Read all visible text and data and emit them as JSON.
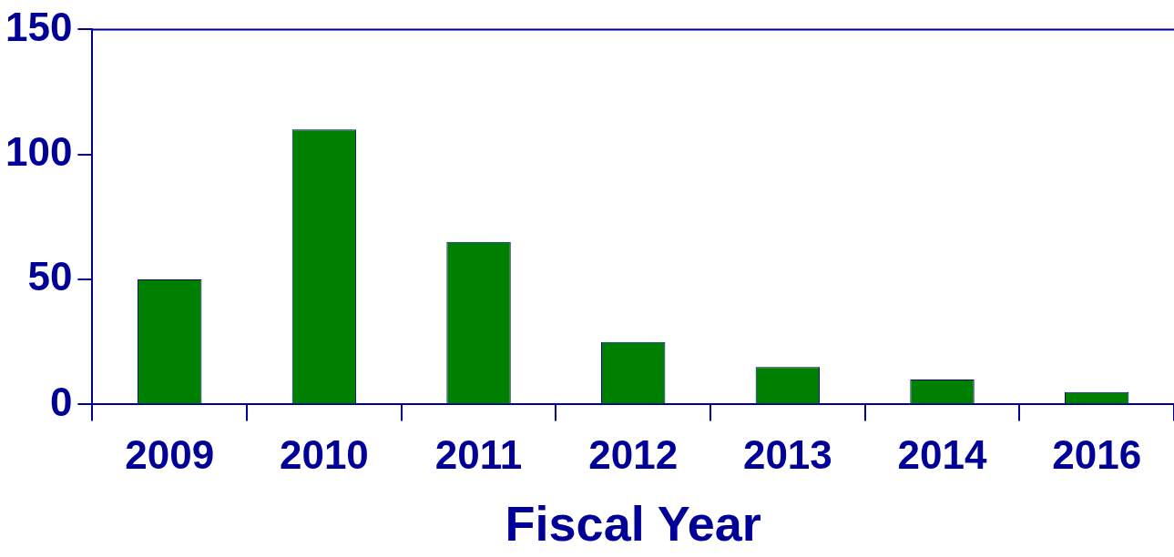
{
  "chart_data": {
    "type": "bar",
    "xlabel": "Fiscal Year",
    "categories": [
      "2009",
      "2010",
      "2011",
      "2012",
      "2013",
      "2014",
      "2016"
    ],
    "values": [
      50,
      110,
      65,
      25,
      15,
      10,
      5
    ],
    "color": "#008000",
    "ylim": [
      0,
      150
    ],
    "yticks": [
      0,
      50,
      100,
      150
    ],
    "grid": false,
    "legend": false
  }
}
